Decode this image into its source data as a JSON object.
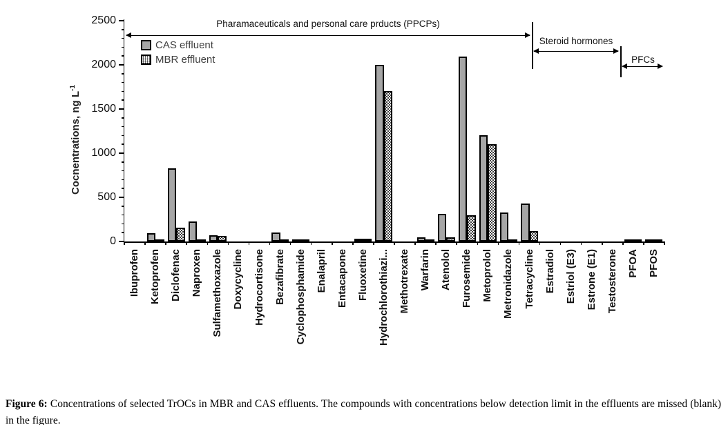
{
  "chart_data": {
    "type": "bar",
    "title": "",
    "ylabel": "Cocnentrations, ng L",
    "ylabel_sup": "-1",
    "xlabel": "",
    "ylim": [
      0,
      2500
    ],
    "yticks": [
      0,
      500,
      1000,
      1500,
      2000,
      2500
    ],
    "y_minor_step": 100,
    "grid": false,
    "legend_position": "top-left-inside",
    "categories": [
      "Ibuprofen",
      "Ketoprofen",
      "Diclofenac",
      "Naproxen",
      "Sulfamethoxazole",
      "Doxycycline",
      "Hydrocortisone",
      "Bezafibrate",
      "Cyclophosphamide",
      "Enalapril",
      "Entacapone",
      "Fluoxetine",
      "Hydrochlorothiazi...",
      "Methotrexate",
      "Warfarin",
      "Atenolol",
      "Furosemide",
      "Metoprolol",
      "Metronidazole",
      "Tetracycline",
      "Estradiol",
      "Estriol (E3)",
      "Estrone (E1)",
      "Testosterone",
      "PFOA",
      "PFOS"
    ],
    "series": [
      {
        "name": "CAS effluent",
        "values": [
          null,
          90,
          830,
          230,
          70,
          null,
          null,
          100,
          20,
          null,
          null,
          30,
          2000,
          null,
          50,
          310,
          2090,
          1200,
          330,
          430,
          null,
          null,
          null,
          null,
          20,
          20
        ]
      },
      {
        "name": "MBR effluent",
        "values": [
          null,
          15,
          160,
          15,
          60,
          null,
          null,
          15,
          20,
          null,
          null,
          30,
          1700,
          null,
          15,
          50,
          300,
          1100,
          25,
          120,
          null,
          null,
          null,
          null,
          20,
          20
        ]
      }
    ],
    "group_annotations": [
      {
        "label": "Pharamaceuticals and personal care prducts (PPCPs)",
        "from": 0,
        "to": 19
      },
      {
        "label": "Steroid hormones",
        "from": 20,
        "to": 23
      },
      {
        "label": "PFCs",
        "from": 24,
        "to": 25
      }
    ]
  },
  "colors": {
    "cas_fill": "#a6a6a6",
    "bar_border": "#000000",
    "mbr_pattern": "dotted-black-on-white",
    "axis": "#000000",
    "legend_text": "#3f3f3f"
  },
  "caption": {
    "label": "Figure 6:",
    "text": "Concentrations of selected TrOCs in MBR and CAS effluents. The compounds with concentrations below detection limit in the effluents are missed (blank) in the figure."
  }
}
